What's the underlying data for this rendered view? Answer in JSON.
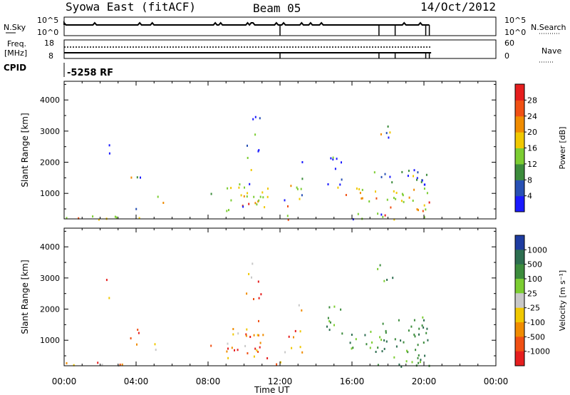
{
  "header": {
    "station": "Syowa East (fitACF)",
    "beam": "Beam 05",
    "date": "14/Oct/2012"
  },
  "left_labels": {
    "nsky": "N.Sky",
    "nsky_hi": "10^5",
    "nsky_lo": "10^0",
    "freq_line1": "Freq.",
    "freq_line2": "[MHz]",
    "freq_hi": "18",
    "freq_lo": "8",
    "cpid": "CPID",
    "cpid_value": "-5258 RF"
  },
  "right_labels": {
    "nsearch": "N.Search",
    "ns_hi": "10^5",
    "ns_lo": "10^0",
    "nave": "Nave",
    "nave_hi": "60",
    "nave_lo": "0"
  },
  "chart_data": [
    {
      "type": "heatmap",
      "panel": "power",
      "ylabel": "Slant Range [km]",
      "ylim": [
        180,
        4600
      ],
      "yticks": [
        "1000",
        "2000",
        "3000",
        "4000"
      ],
      "xticks": [
        "00:00",
        "04:00",
        "08:00",
        "12:00",
        "16:00",
        "20:00",
        "00:00"
      ],
      "colorbar": {
        "label": "Power [dB]",
        "ticks": [
          "4",
          "8",
          "12",
          "16",
          "20",
          "24",
          "28"
        ],
        "colors": [
          "#1a1aff",
          "#2850b4",
          "#3c8c3c",
          "#7ccd32",
          "#f0c800",
          "#f08c00",
          "#f05014",
          "#e61e1e"
        ]
      }
    },
    {
      "type": "heatmap",
      "panel": "velocity",
      "xlabel": "Time UT",
      "ylabel": "Slant Range [km]",
      "ylim": [
        180,
        4600
      ],
      "yticks": [
        "1000",
        "2000",
        "3000",
        "4000"
      ],
      "xticks": [
        "00:00",
        "04:00",
        "08:00",
        "12:00",
        "16:00",
        "20:00",
        "00:00"
      ],
      "colorbar": {
        "label": "Velocity [m s⁻¹]",
        "ticks": [
          "1000",
          "500",
          "100",
          "25",
          "-25",
          "-100",
          "-500",
          "-1000"
        ],
        "colors": [
          "#1e3ca0",
          "#2d6e50",
          "#3c8c3c",
          "#7ccd32",
          "#c8c8c8",
          "#f0c800",
          "#f08c00",
          "#f05014",
          "#e61e1e"
        ]
      }
    }
  ]
}
